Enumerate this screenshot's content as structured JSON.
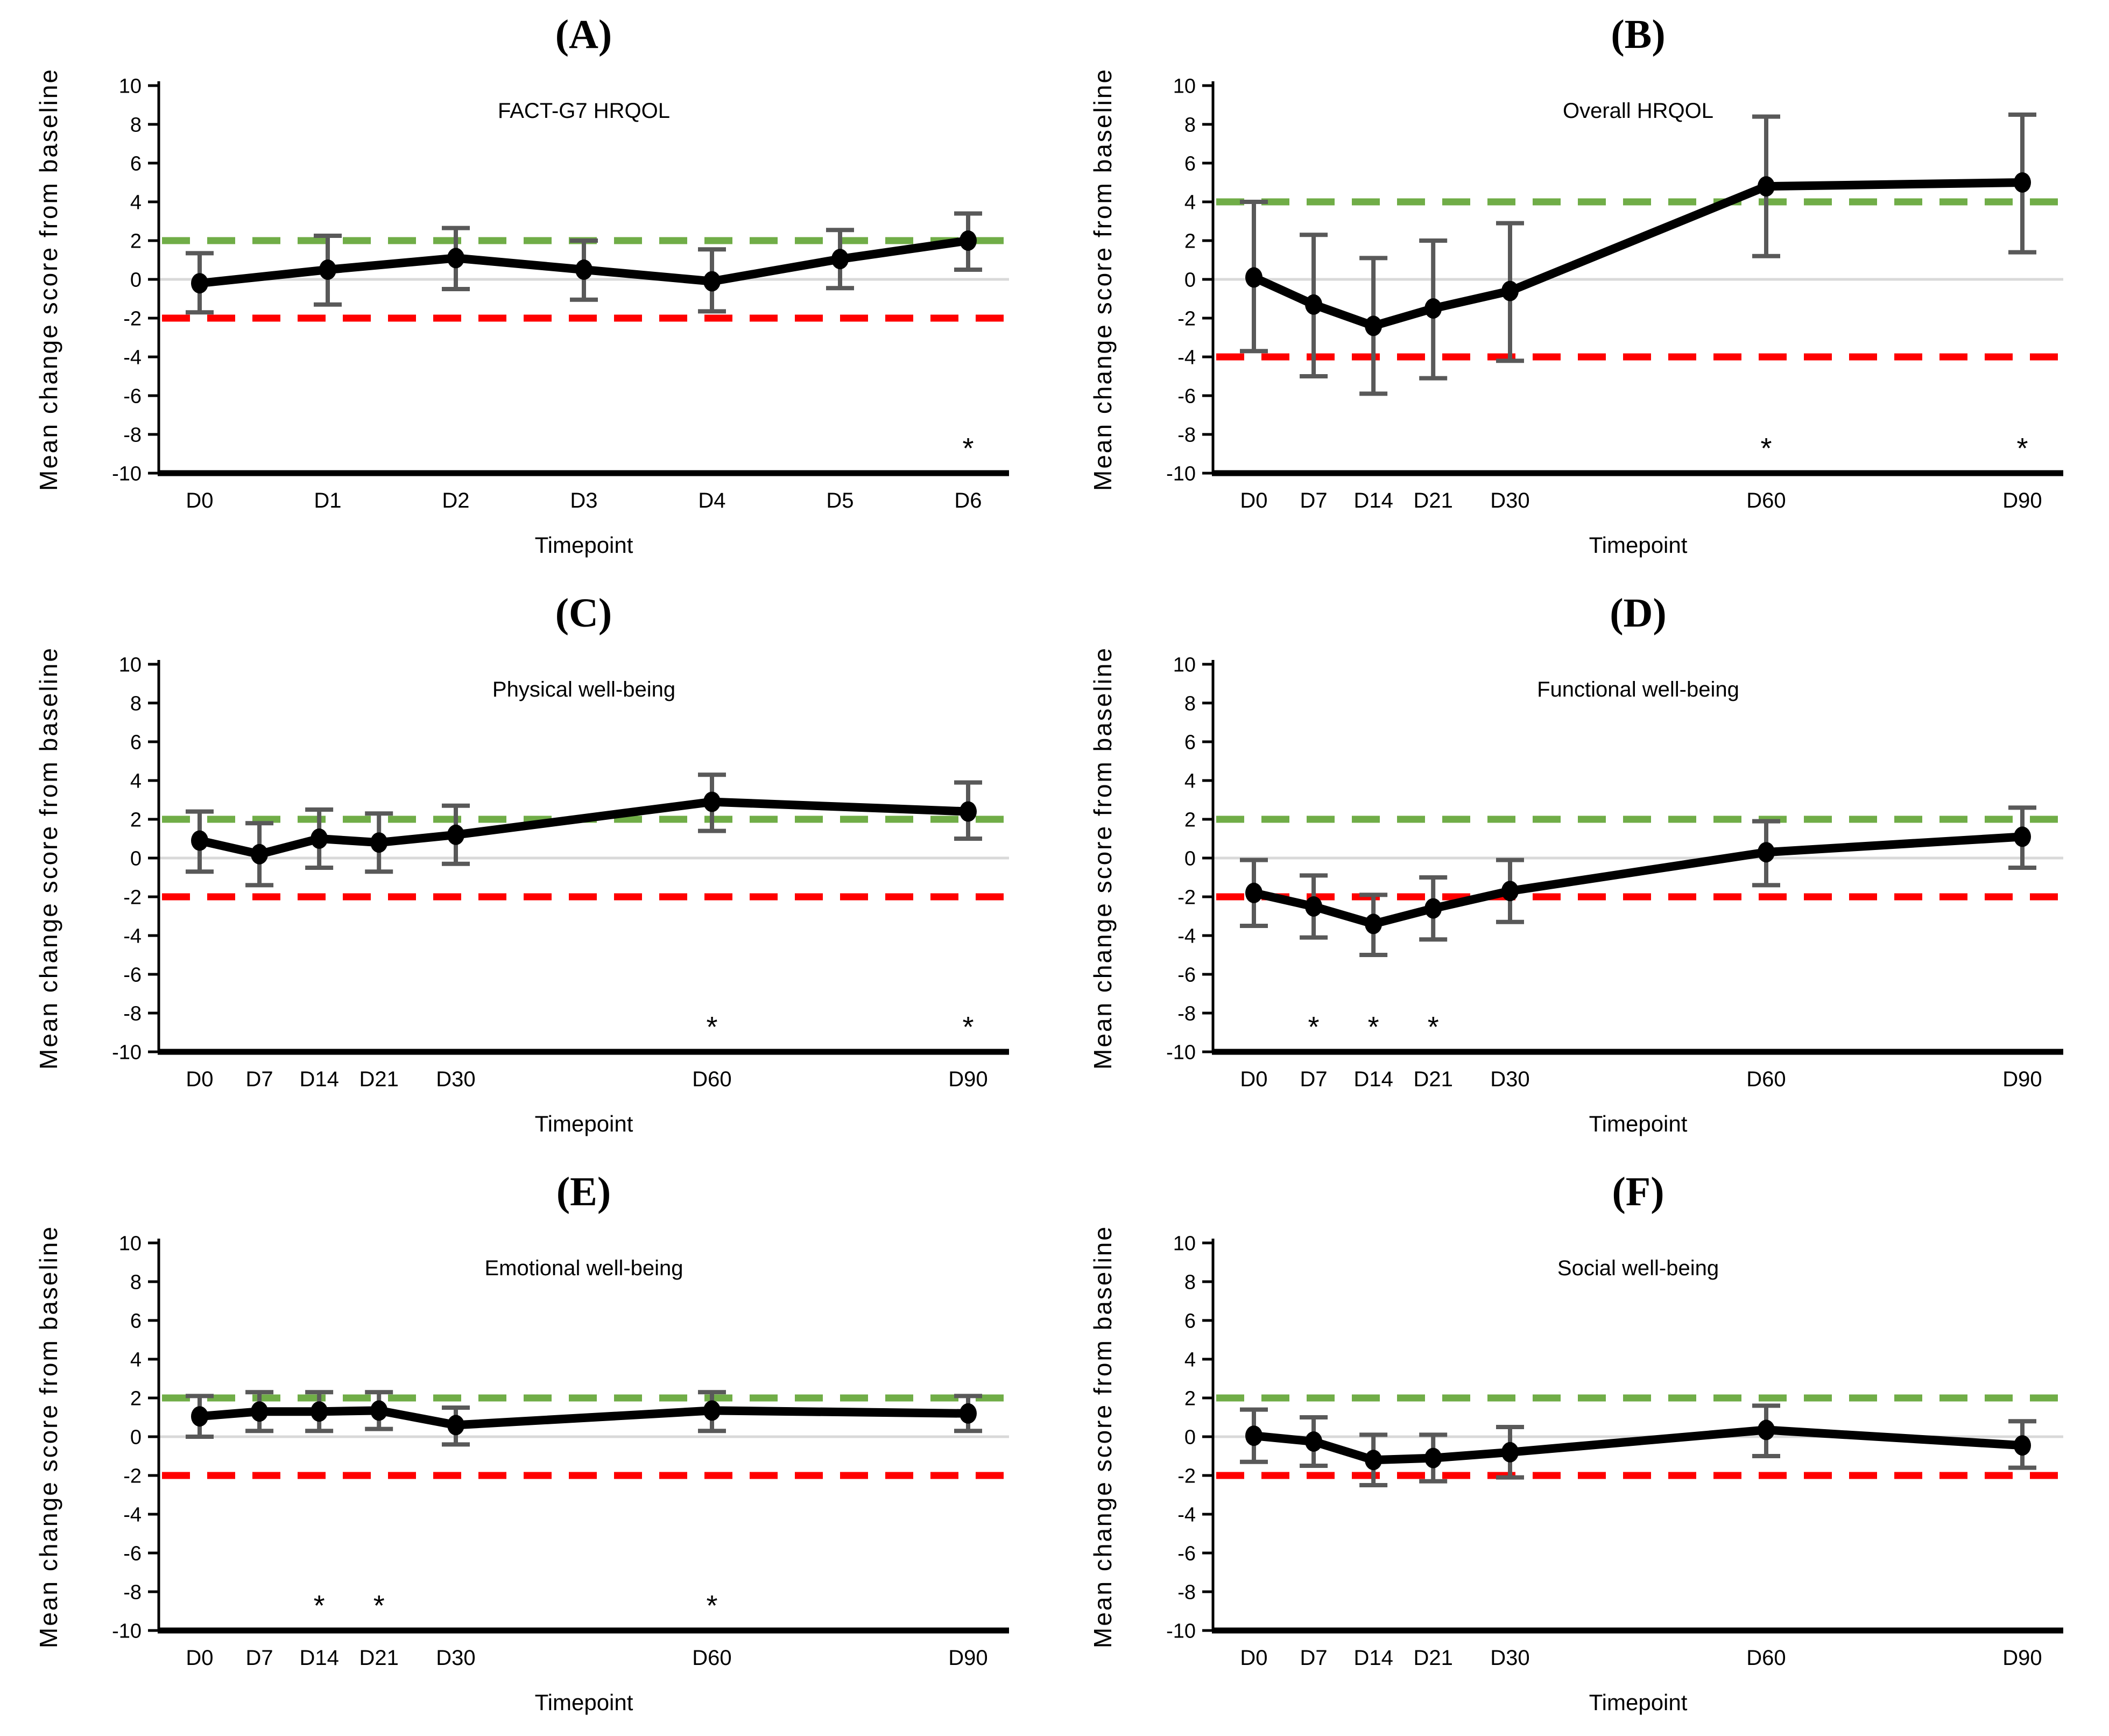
{
  "figure": {
    "y_axis_label": "Mean change score from baseline",
    "x_axis_label": "Timepoint",
    "y_ticks": [
      10,
      8,
      6,
      4,
      2,
      0,
      -2,
      -4,
      -6,
      -8,
      -10
    ],
    "ylim": [
      -10,
      10
    ],
    "colors": {
      "series": "#000000",
      "error_bar": "#595959",
      "green_threshold": "#70AD47",
      "red_threshold": "#FF0000",
      "zero_line": "#D9D9D9",
      "background": "#FFFFFF"
    },
    "significance_symbol": "*"
  },
  "chart_data": [
    {
      "id": "A",
      "letter": "(A)",
      "type": "line",
      "title": "FACT-G7 HRQOL",
      "xlabel": "Timepoint",
      "ylabel": "Mean change score from baseline",
      "ylim": [
        -10,
        10
      ],
      "categories": [
        "D0",
        "D1",
        "D2",
        "D3",
        "D4",
        "D5",
        "D6"
      ],
      "x_days": [
        0,
        1,
        2,
        3,
        4,
        5,
        6
      ],
      "values": [
        -0.2,
        0.5,
        1.1,
        0.5,
        -0.1,
        1.05,
        2.0
      ],
      "err_low": [
        -1.7,
        -1.3,
        -0.5,
        -1.05,
        -1.65,
        -0.45,
        0.5
      ],
      "err_high": [
        1.35,
        2.25,
        2.65,
        2.0,
        1.55,
        2.55,
        3.4
      ],
      "green_line_y": 2,
      "red_line_y": -2,
      "asterisk_days": [
        6
      ]
    },
    {
      "id": "B",
      "letter": "(B)",
      "type": "line",
      "title": "Overall HRQOL",
      "xlabel": "Timepoint",
      "ylabel": "Mean change score from baseline",
      "ylim": [
        -10,
        10
      ],
      "categories": [
        "D0",
        "D7",
        "D14",
        "D21",
        "D30",
        "D60",
        "D90"
      ],
      "x_days": [
        0,
        7,
        14,
        21,
        30,
        60,
        90
      ],
      "values": [
        0.1,
        -1.3,
        -2.4,
        -1.5,
        -0.6,
        4.8,
        5.0
      ],
      "err_low": [
        -3.7,
        -5.0,
        -5.9,
        -5.1,
        -4.2,
        1.2,
        1.4
      ],
      "err_high": [
        4.0,
        2.3,
        1.1,
        2.0,
        2.9,
        8.4,
        8.5
      ],
      "green_line_y": 4,
      "red_line_y": -4,
      "asterisk_days": [
        60,
        90
      ]
    },
    {
      "id": "C",
      "letter": "(C)",
      "type": "line",
      "title": "Physical well-being",
      "xlabel": "Timepoint",
      "ylabel": "Mean change score from baseline",
      "ylim": [
        -10,
        10
      ],
      "categories": [
        "D0",
        "D7",
        "D14",
        "D21",
        "D30",
        "D60",
        "D90"
      ],
      "x_days": [
        0,
        7,
        14,
        21,
        30,
        60,
        90
      ],
      "values": [
        0.9,
        0.2,
        1.0,
        0.8,
        1.2,
        2.9,
        2.4
      ],
      "err_low": [
        -0.7,
        -1.4,
        -0.5,
        -0.7,
        -0.3,
        1.4,
        1.0
      ],
      "err_high": [
        2.4,
        1.8,
        2.5,
        2.3,
        2.7,
        4.3,
        3.9
      ],
      "green_line_y": 2,
      "red_line_y": -2,
      "asterisk_days": [
        60,
        90
      ]
    },
    {
      "id": "D",
      "letter": "(D)",
      "type": "line",
      "title": "Functional well-being",
      "xlabel": "Timepoint",
      "ylabel": "Mean change score from baseline",
      "ylim": [
        -10,
        10
      ],
      "categories": [
        "D0",
        "D7",
        "D14",
        "D21",
        "D30",
        "D60",
        "D90"
      ],
      "x_days": [
        0,
        7,
        14,
        21,
        30,
        60,
        90
      ],
      "values": [
        -1.8,
        -2.5,
        -3.4,
        -2.6,
        -1.7,
        0.3,
        1.1
      ],
      "err_low": [
        -3.5,
        -4.1,
        -5.0,
        -4.2,
        -3.3,
        -1.4,
        -0.5
      ],
      "err_high": [
        -0.1,
        -0.9,
        -1.9,
        -1.0,
        -0.1,
        1.9,
        2.6
      ],
      "green_line_y": 2,
      "red_line_y": -2,
      "asterisk_days": [
        7,
        14,
        21
      ]
    },
    {
      "id": "E",
      "letter": "(E)",
      "type": "line",
      "title": "Emotional well-being",
      "xlabel": "Timepoint",
      "ylabel": "Mean change score from baseline",
      "ylim": [
        -10,
        10
      ],
      "categories": [
        "D0",
        "D7",
        "D14",
        "D21",
        "D30",
        "D60",
        "D90"
      ],
      "x_days": [
        0,
        7,
        14,
        21,
        30,
        60,
        90
      ],
      "values": [
        1.05,
        1.3,
        1.3,
        1.35,
        0.6,
        1.35,
        1.2
      ],
      "err_low": [
        0.0,
        0.3,
        0.3,
        0.4,
        -0.4,
        0.3,
        0.3
      ],
      "err_high": [
        2.1,
        2.3,
        2.3,
        2.3,
        1.5,
        2.3,
        2.1
      ],
      "green_line_y": 2,
      "red_line_y": -2,
      "asterisk_days": [
        14,
        21,
        60
      ]
    },
    {
      "id": "F",
      "letter": "(F)",
      "type": "line",
      "title": "Social well-being",
      "xlabel": "Timepoint",
      "ylabel": "Mean change score from baseline",
      "ylim": [
        -10,
        10
      ],
      "categories": [
        "D0",
        "D7",
        "D14",
        "D21",
        "D30",
        "D60",
        "D90"
      ],
      "x_days": [
        0,
        7,
        14,
        21,
        30,
        60,
        90
      ],
      "values": [
        0.05,
        -0.25,
        -1.2,
        -1.1,
        -0.8,
        0.35,
        -0.45
      ],
      "err_low": [
        -1.3,
        -1.5,
        -2.5,
        -2.3,
        -2.1,
        -1.0,
        -1.6
      ],
      "err_high": [
        1.4,
        1.0,
        0.1,
        0.1,
        0.5,
        1.6,
        0.8
      ],
      "green_line_y": 2,
      "red_line_y": -2,
      "asterisk_days": []
    }
  ]
}
